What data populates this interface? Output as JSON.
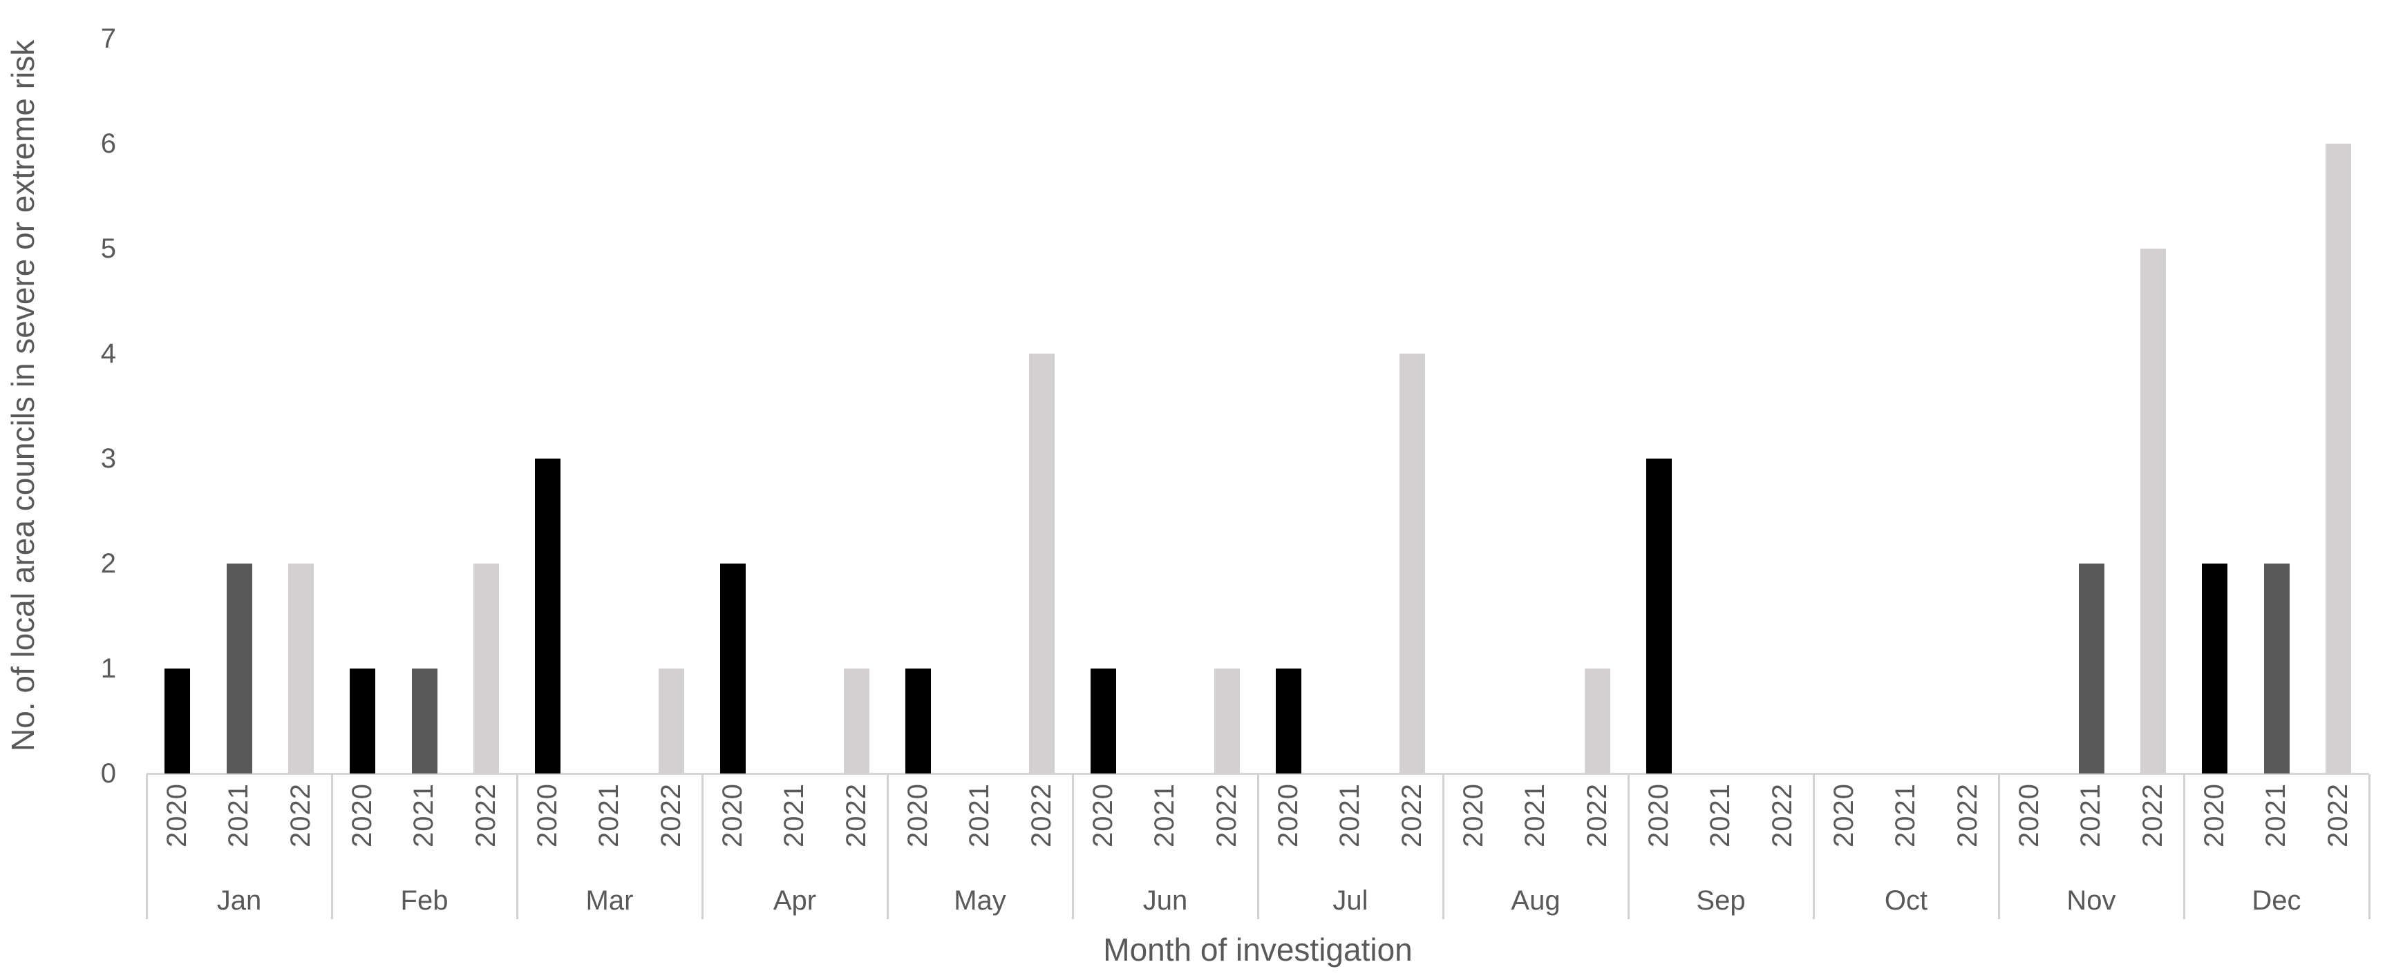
{
  "chart_data": {
    "type": "bar",
    "title": "",
    "xlabel": "Month of investigation",
    "ylabel": "No. of local area councils in severe or extreme risk",
    "categories": [
      "Jan",
      "Feb",
      "Mar",
      "Apr",
      "May",
      "Jun",
      "Jul",
      "Aug",
      "Sep",
      "Oct",
      "Nov",
      "Dec"
    ],
    "series": [
      {
        "name": "2020",
        "color": "#000000",
        "values": [
          1,
          1,
          3,
          2,
          1,
          1,
          1,
          0,
          3,
          0,
          0,
          2
        ]
      },
      {
        "name": "2021",
        "color": "#595959",
        "values": [
          2,
          1,
          0,
          0,
          0,
          0,
          0,
          0,
          0,
          0,
          2,
          2
        ]
      },
      {
        "name": "2022",
        "color": "#d2d0d0",
        "values": [
          2,
          2,
          1,
          1,
          4,
          1,
          4,
          1,
          0,
          0,
          5,
          6
        ]
      }
    ],
    "ylim": [
      0,
      7
    ],
    "yticks": [
      0,
      1,
      2,
      3,
      4,
      5,
      6,
      7
    ],
    "grid": false,
    "legend": "none"
  },
  "colors": {
    "text": "#595959",
    "axis_line": "#d7d5d5",
    "separator": "#d2d2d2",
    "background": "#ffffff"
  }
}
